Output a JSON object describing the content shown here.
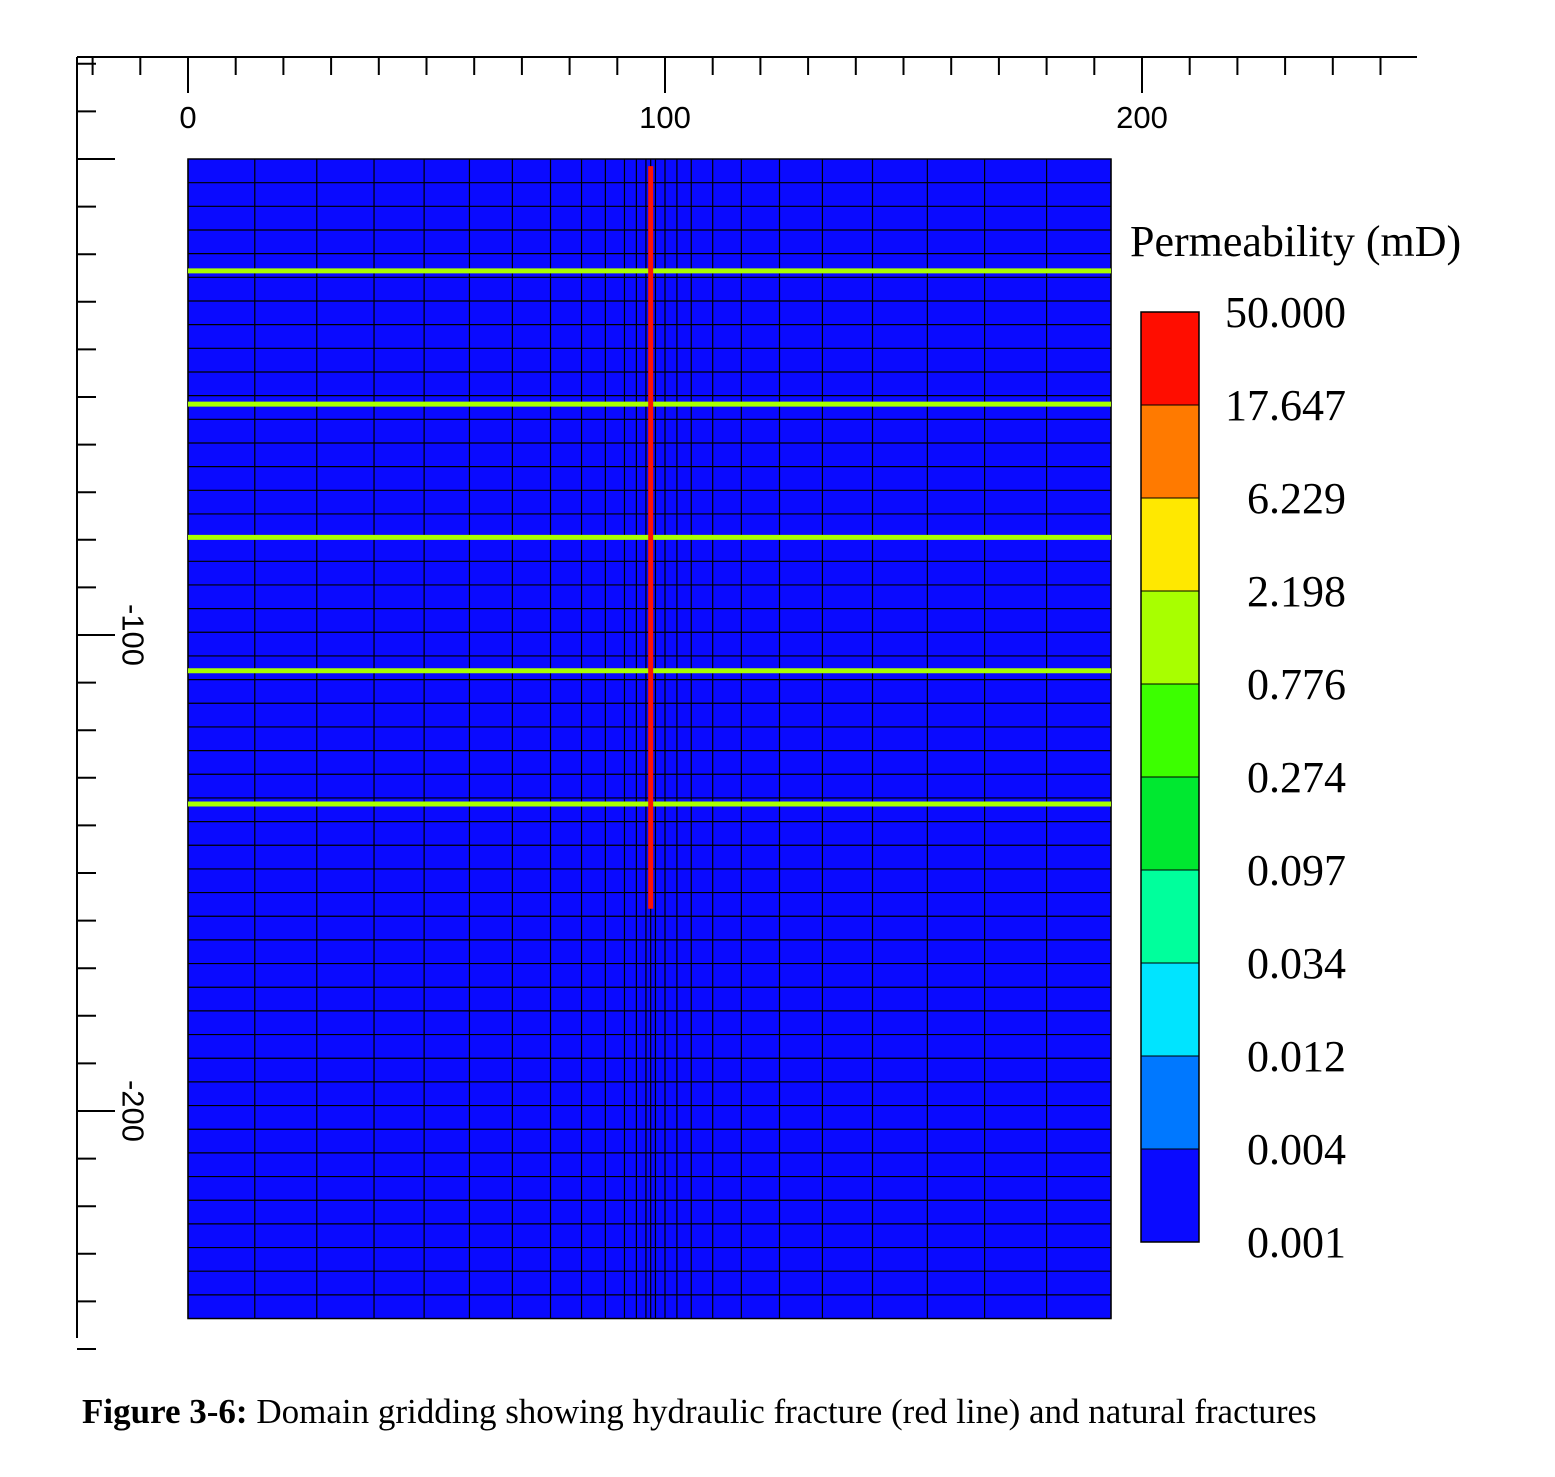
{
  "chart_data": {
    "type": "heatmap",
    "x_axis": {
      "ticks": [
        0,
        100,
        200
      ],
      "range": [
        -23,
        258
      ],
      "minor_step": 10
    },
    "y_axis": {
      "ticks": [
        -100,
        -200
      ],
      "range": [
        -260,
        21
      ],
      "minor_step": 10
    },
    "domain": {
      "x": [
        0,
        193.5
      ],
      "y": [
        -243.6,
        0
      ]
    },
    "grid": {
      "x_lines": [
        0,
        14,
        27,
        39,
        49.5,
        59,
        68,
        76,
        82.5,
        87.5,
        91.5,
        94,
        96,
        97,
        98,
        100,
        102.5,
        105.5,
        110,
        116,
        124,
        133,
        143.5,
        155,
        167,
        180,
        193.5
      ],
      "row_count": 49
    },
    "background": {
      "value_mD": 0.001,
      "color": "#0a0aff"
    },
    "hydraulic_fracture": {
      "x": 97,
      "y_range": [
        -1.5,
        -157.5
      ],
      "value_mD": 50.0,
      "color": "#ff1100"
    },
    "natural_fractures": {
      "y": [
        -23.5,
        -51.5,
        -79.5,
        -107.5,
        -135.5
      ],
      "value_mD": 2.198,
      "color": "#a8ff00"
    },
    "legend": {
      "title": "Permeability (mD)",
      "labels": [
        "50.000",
        "17.647",
        "6.229",
        "2.198",
        "0.776",
        "0.274",
        "0.097",
        "0.034",
        "0.012",
        "0.004",
        "0.001"
      ],
      "colors": [
        "#ff0d00",
        "#ff7a00",
        "#ffe800",
        "#a8ff00",
        "#3cff00",
        "#00e830",
        "#00ff9c",
        "#00e4ff",
        "#0078ff",
        "#0a0aff"
      ]
    }
  },
  "caption": {
    "label": "Figure 3-6:",
    "text": " Domain gridding showing hydraulic fracture (red line) and natural fractures"
  }
}
